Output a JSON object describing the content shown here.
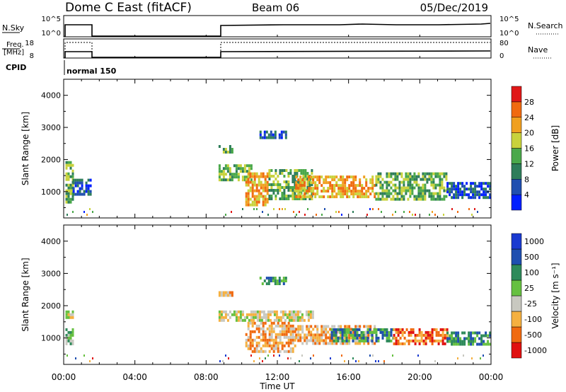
{
  "header": {
    "title": "Dome C East (fitACF)",
    "beam": "Beam 06",
    "date": "05/Dec/2019"
  },
  "top_panels": {
    "nsky": {
      "label": "N.Sky",
      "ticks": [
        "10^5",
        "10^0"
      ],
      "right_ticks": [
        "10^5",
        "10^0"
      ],
      "right_label": "N.Search"
    },
    "freq": {
      "label_1": "Freq.",
      "label_2": "[MHz]",
      "ticks": [
        "18",
        "8"
      ],
      "right_ticks": [
        "80",
        "0"
      ],
      "right_label": "Nave"
    },
    "cpid": {
      "label": "CPID",
      "mode_text": "normal 150"
    }
  },
  "axes": {
    "x_ticks": [
      "00:00",
      "04:00",
      "08:00",
      "12:00",
      "16:00",
      "20:00",
      "00:00"
    ],
    "xlabel": "Time UT",
    "ylabel": "Slant Range [km]",
    "y_ticks": [
      "1000",
      "2000",
      "3000",
      "4000"
    ]
  },
  "colors": {
    "power": [
      "#0020ff",
      "#1f4fb0",
      "#2e7d5a",
      "#4aa84a",
      "#c8d23c",
      "#f0a020",
      "#f06a10",
      "#e01818"
    ],
    "velocity": [
      "#e01010",
      "#f06a10",
      "#f5b040",
      "#c8c8c0",
      "#66c040",
      "#2e8a5a",
      "#1f4fb0",
      "#1a3ad0"
    ]
  },
  "colorbars": {
    "power": {
      "label": "Power [dB]",
      "ticks": [
        "4",
        "8",
        "12",
        "16",
        "20",
        "24",
        "28"
      ]
    },
    "velocity": {
      "label": "Velocity [m s⁻¹]",
      "ticks": [
        "-1000",
        "-500",
        "-100",
        "-25",
        "25",
        "100",
        "500",
        "1000"
      ]
    }
  },
  "chart_data": [
    {
      "type": "heatmap",
      "quantity": "Power",
      "x_range_hours": [
        0,
        24
      ],
      "ylim_km": [
        180,
        4500
      ],
      "regions": [
        {
          "t": [
            0.1,
            0.5
          ],
          "r": [
            650,
            1950
          ],
          "level": 3
        },
        {
          "t": [
            0.5,
            1.5
          ],
          "r": [
            900,
            1400
          ],
          "level": 1
        },
        {
          "t": [
            8.7,
            10.5
          ],
          "r": [
            1400,
            1850
          ],
          "level": 3
        },
        {
          "t": [
            8.7,
            9.5
          ],
          "r": [
            2250,
            2450
          ],
          "level": 3
        },
        {
          "t": [
            10.2,
            11.5
          ],
          "r": [
            600,
            1600
          ],
          "level": 5
        },
        {
          "t": [
            11.0,
            12.5
          ],
          "r": [
            2700,
            2900
          ],
          "level": 1
        },
        {
          "t": [
            11.5,
            14.0
          ],
          "r": [
            800,
            1700
          ],
          "level": 3
        },
        {
          "t": [
            13.0,
            17.5
          ],
          "r": [
            800,
            1500
          ],
          "level": 5
        },
        {
          "t": [
            17.5,
            21.5
          ],
          "r": [
            800,
            1600
          ],
          "level": 3
        },
        {
          "t": [
            21.5,
            23.9
          ],
          "r": [
            800,
            1300
          ],
          "level": 1
        }
      ]
    },
    {
      "type": "heatmap",
      "quantity": "Velocity",
      "x_range_hours": [
        0,
        24
      ],
      "ylim_km": [
        180,
        4500
      ],
      "regions": [
        {
          "t": [
            0.1,
            0.5
          ],
          "r": [
            850,
            1300
          ],
          "level": 4
        },
        {
          "t": [
            0.1,
            0.5
          ],
          "r": [
            1600,
            1850
          ],
          "level": 3
        },
        {
          "t": [
            8.7,
            14.0
          ],
          "r": [
            1550,
            1850
          ],
          "level": 3
        },
        {
          "t": [
            8.7,
            9.5
          ],
          "r": [
            2300,
            2450
          ],
          "level": 2
        },
        {
          "t": [
            10.2,
            13.0
          ],
          "r": [
            600,
            1500
          ],
          "level": 2
        },
        {
          "t": [
            11.0,
            12.5
          ],
          "r": [
            2700,
            2900
          ],
          "level": 5
        },
        {
          "t": [
            13.0,
            17.5
          ],
          "r": [
            800,
            1400
          ],
          "level": 2
        },
        {
          "t": [
            15.0,
            18.5
          ],
          "r": [
            900,
            1300
          ],
          "level": 5
        },
        {
          "t": [
            18.5,
            21.5
          ],
          "r": [
            850,
            1300
          ],
          "level": 1
        },
        {
          "t": [
            21.5,
            23.9
          ],
          "r": [
            800,
            1200
          ],
          "level": 5
        }
      ]
    }
  ]
}
